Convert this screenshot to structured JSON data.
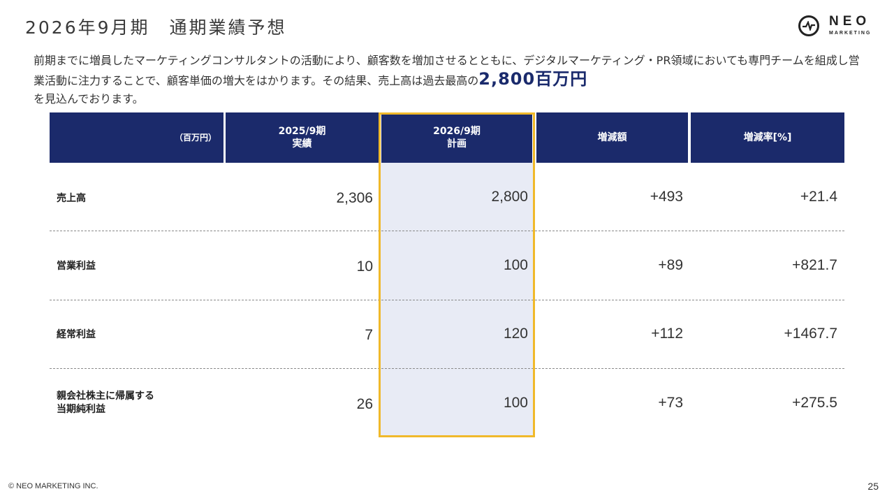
{
  "page": {
    "title": "2026年9月期　通期業績予想",
    "intro_text": "前期までに増員したマーケティングコンサルタントの活動により、顧客数を増加させるとともに、デジタルマーケティング・PR領域においても専門チームを組成し営業活動に注力することで、顧客単価の増大をはかります。その結果、売上高は過去最高の",
    "intro_highlight": "2,800百万円",
    "intro_tail": "を見込んでおります。",
    "footer": "© NEO MARKETING INC.",
    "page_number": "25"
  },
  "logo": {
    "word": "NEO",
    "sub": "MARKETING"
  },
  "table": {
    "unit_label": "（百万円）",
    "col1": {
      "line1": "2025/9期",
      "line2": "実績"
    },
    "col2": {
      "line1": "2026/9期",
      "line2": "計画"
    },
    "col3": "増減額",
    "col4": "増減率[%]",
    "rows": [
      {
        "label_line1": "売上高",
        "label_line2": "",
        "actual": "2,306",
        "plan": "2,800",
        "diff": "+493",
        "rate": "+21.4"
      },
      {
        "label_line1": "営業利益",
        "label_line2": "",
        "actual": "10",
        "plan": "100",
        "diff": "+89",
        "rate": "+821.7"
      },
      {
        "label_line1": "経常利益",
        "label_line2": "",
        "actual": "7",
        "plan": "120",
        "diff": "+112",
        "rate": "+1467.7"
      },
      {
        "label_line1": "親会社株主に帰属する",
        "label_line2": "当期純利益",
        "actual": "26",
        "plan": "100",
        "diff": "+73",
        "rate": "+275.5"
      }
    ]
  },
  "colors": {
    "header_bg": "#1b2a6b",
    "highlight_text": "#1a2a6c",
    "plan_frame": "#f0b92a",
    "plan_fill": "#e8ebf5"
  }
}
